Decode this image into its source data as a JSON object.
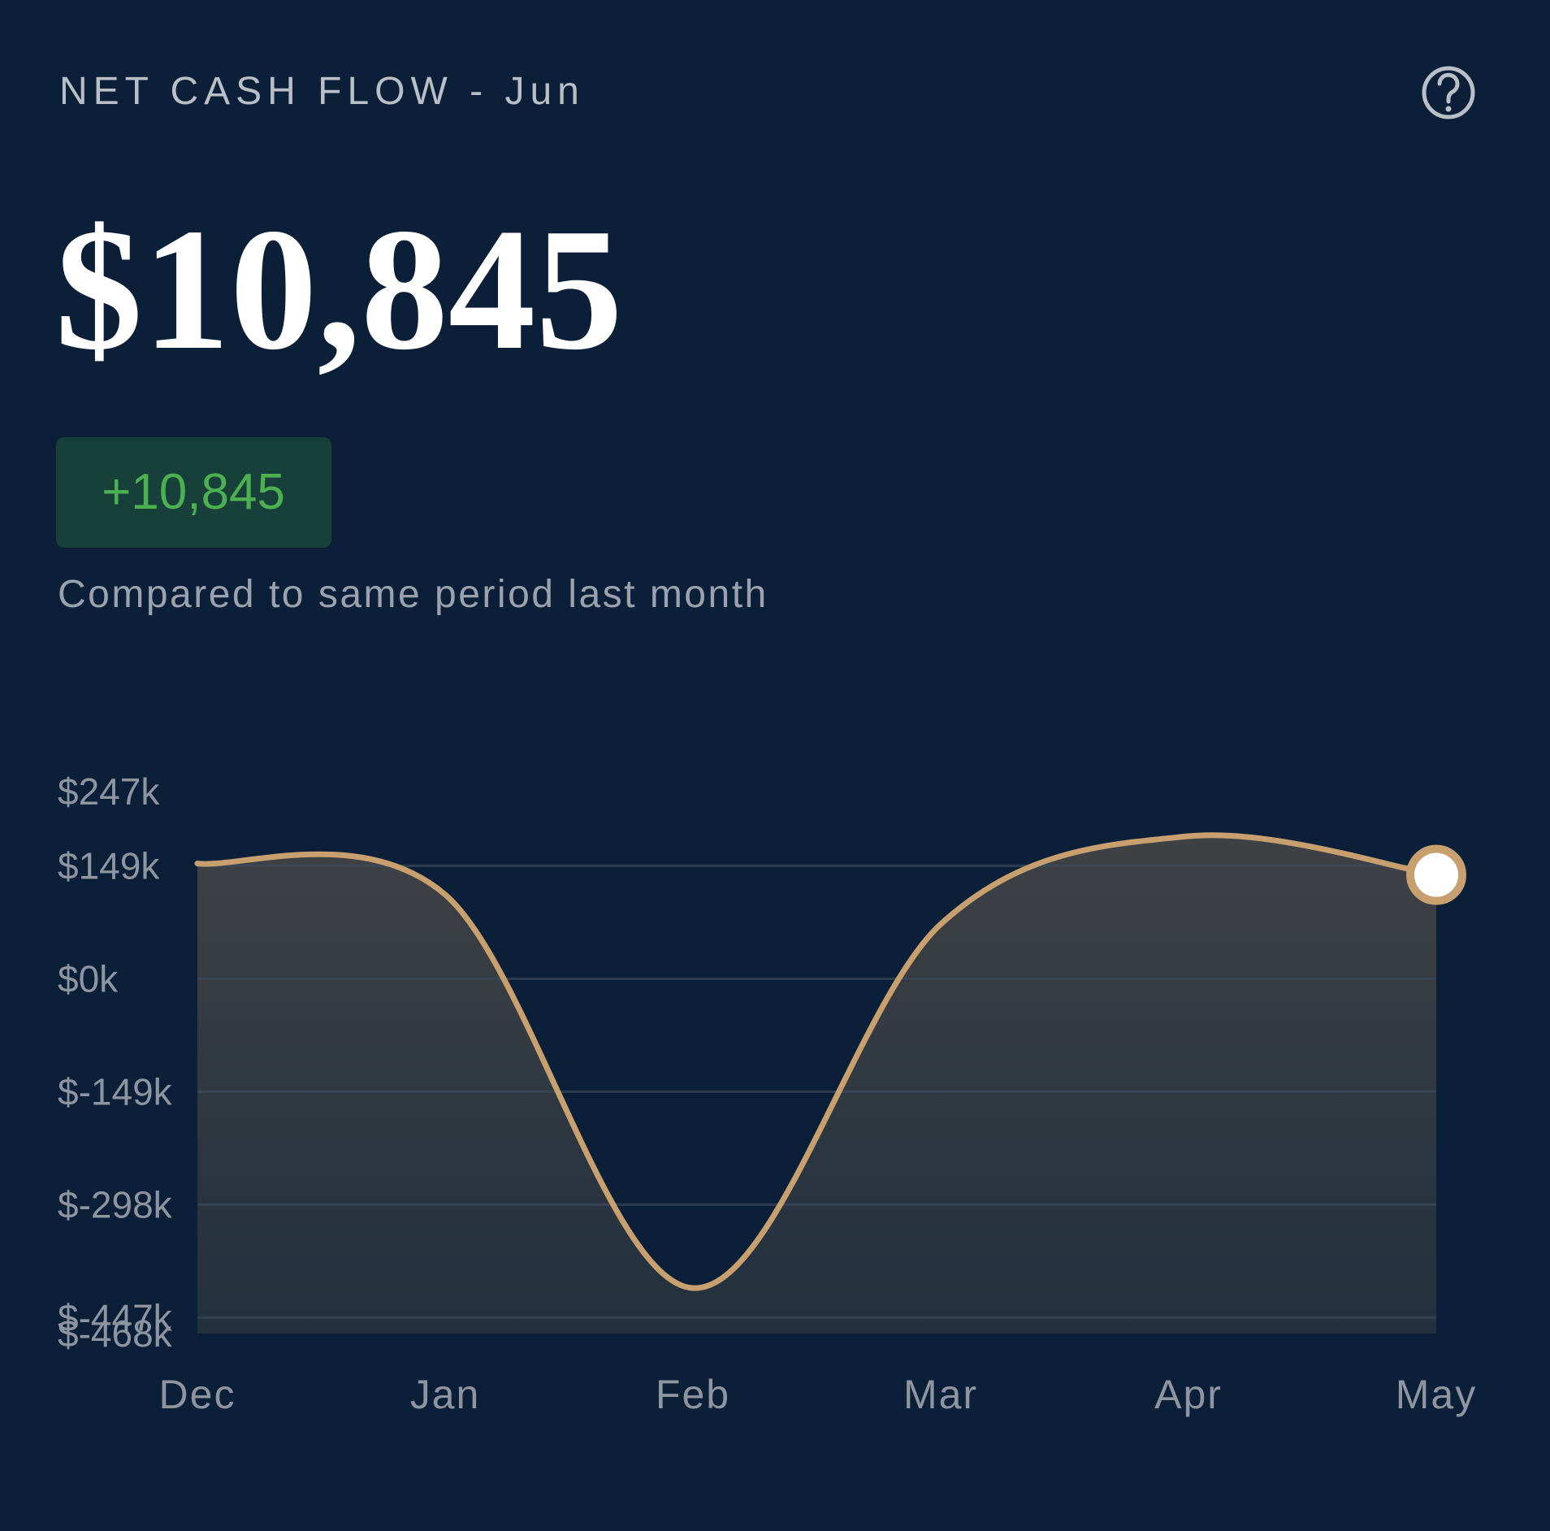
{
  "header": {
    "title": "NET CASH FLOW - Jun",
    "amount": "$10,845",
    "change": "+10,845",
    "caption": "Compared to same period last month"
  },
  "chart_data": {
    "type": "area",
    "categories": [
      "Dec",
      "Jan",
      "Feb",
      "Mar",
      "Apr",
      "May"
    ],
    "values": [
      152000,
      111000,
      -408000,
      72000,
      188000,
      137000
    ],
    "color": "#c8a070",
    "ylim": [
      -468000,
      247000
    ],
    "yticks": [
      {
        "value": 247000,
        "label": "$247k"
      },
      {
        "value": 149000,
        "label": "$149k"
      },
      {
        "value": 0,
        "label": "$0k"
      },
      {
        "value": -149000,
        "label": "$-149k"
      },
      {
        "value": -298000,
        "label": "$-298k"
      },
      {
        "value": -447000,
        "label": "$-447k"
      },
      {
        "value": -468000,
        "label": "$-468k"
      }
    ],
    "grid": true
  }
}
